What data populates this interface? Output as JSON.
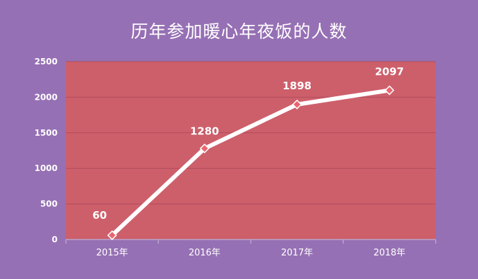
{
  "chart_data": {
    "type": "line",
    "title": "历年参加暖心年夜饭的人数",
    "categories": [
      "2015年",
      "2016年",
      "2017年",
      "2018年"
    ],
    "series": [
      {
        "values": [
          60,
          1280,
          1898,
          2097
        ]
      }
    ],
    "data_labels": [
      "60",
      "1280",
      "1898",
      "2097"
    ],
    "ylim": [
      0,
      2500
    ],
    "yticks": [
      0,
      500,
      1000,
      1500,
      2000,
      2500
    ],
    "ytick_labels": [
      "0",
      "500",
      "1000",
      "1500",
      "2000",
      "2500"
    ],
    "grid": true,
    "legend": "none",
    "colors": {
      "background": "#9670b4",
      "plot_area": "#cd5f6b",
      "gridline": "#b04c5a",
      "line": "#ffffff",
      "marker": "#e8666f",
      "text": "#ffffff"
    }
  }
}
